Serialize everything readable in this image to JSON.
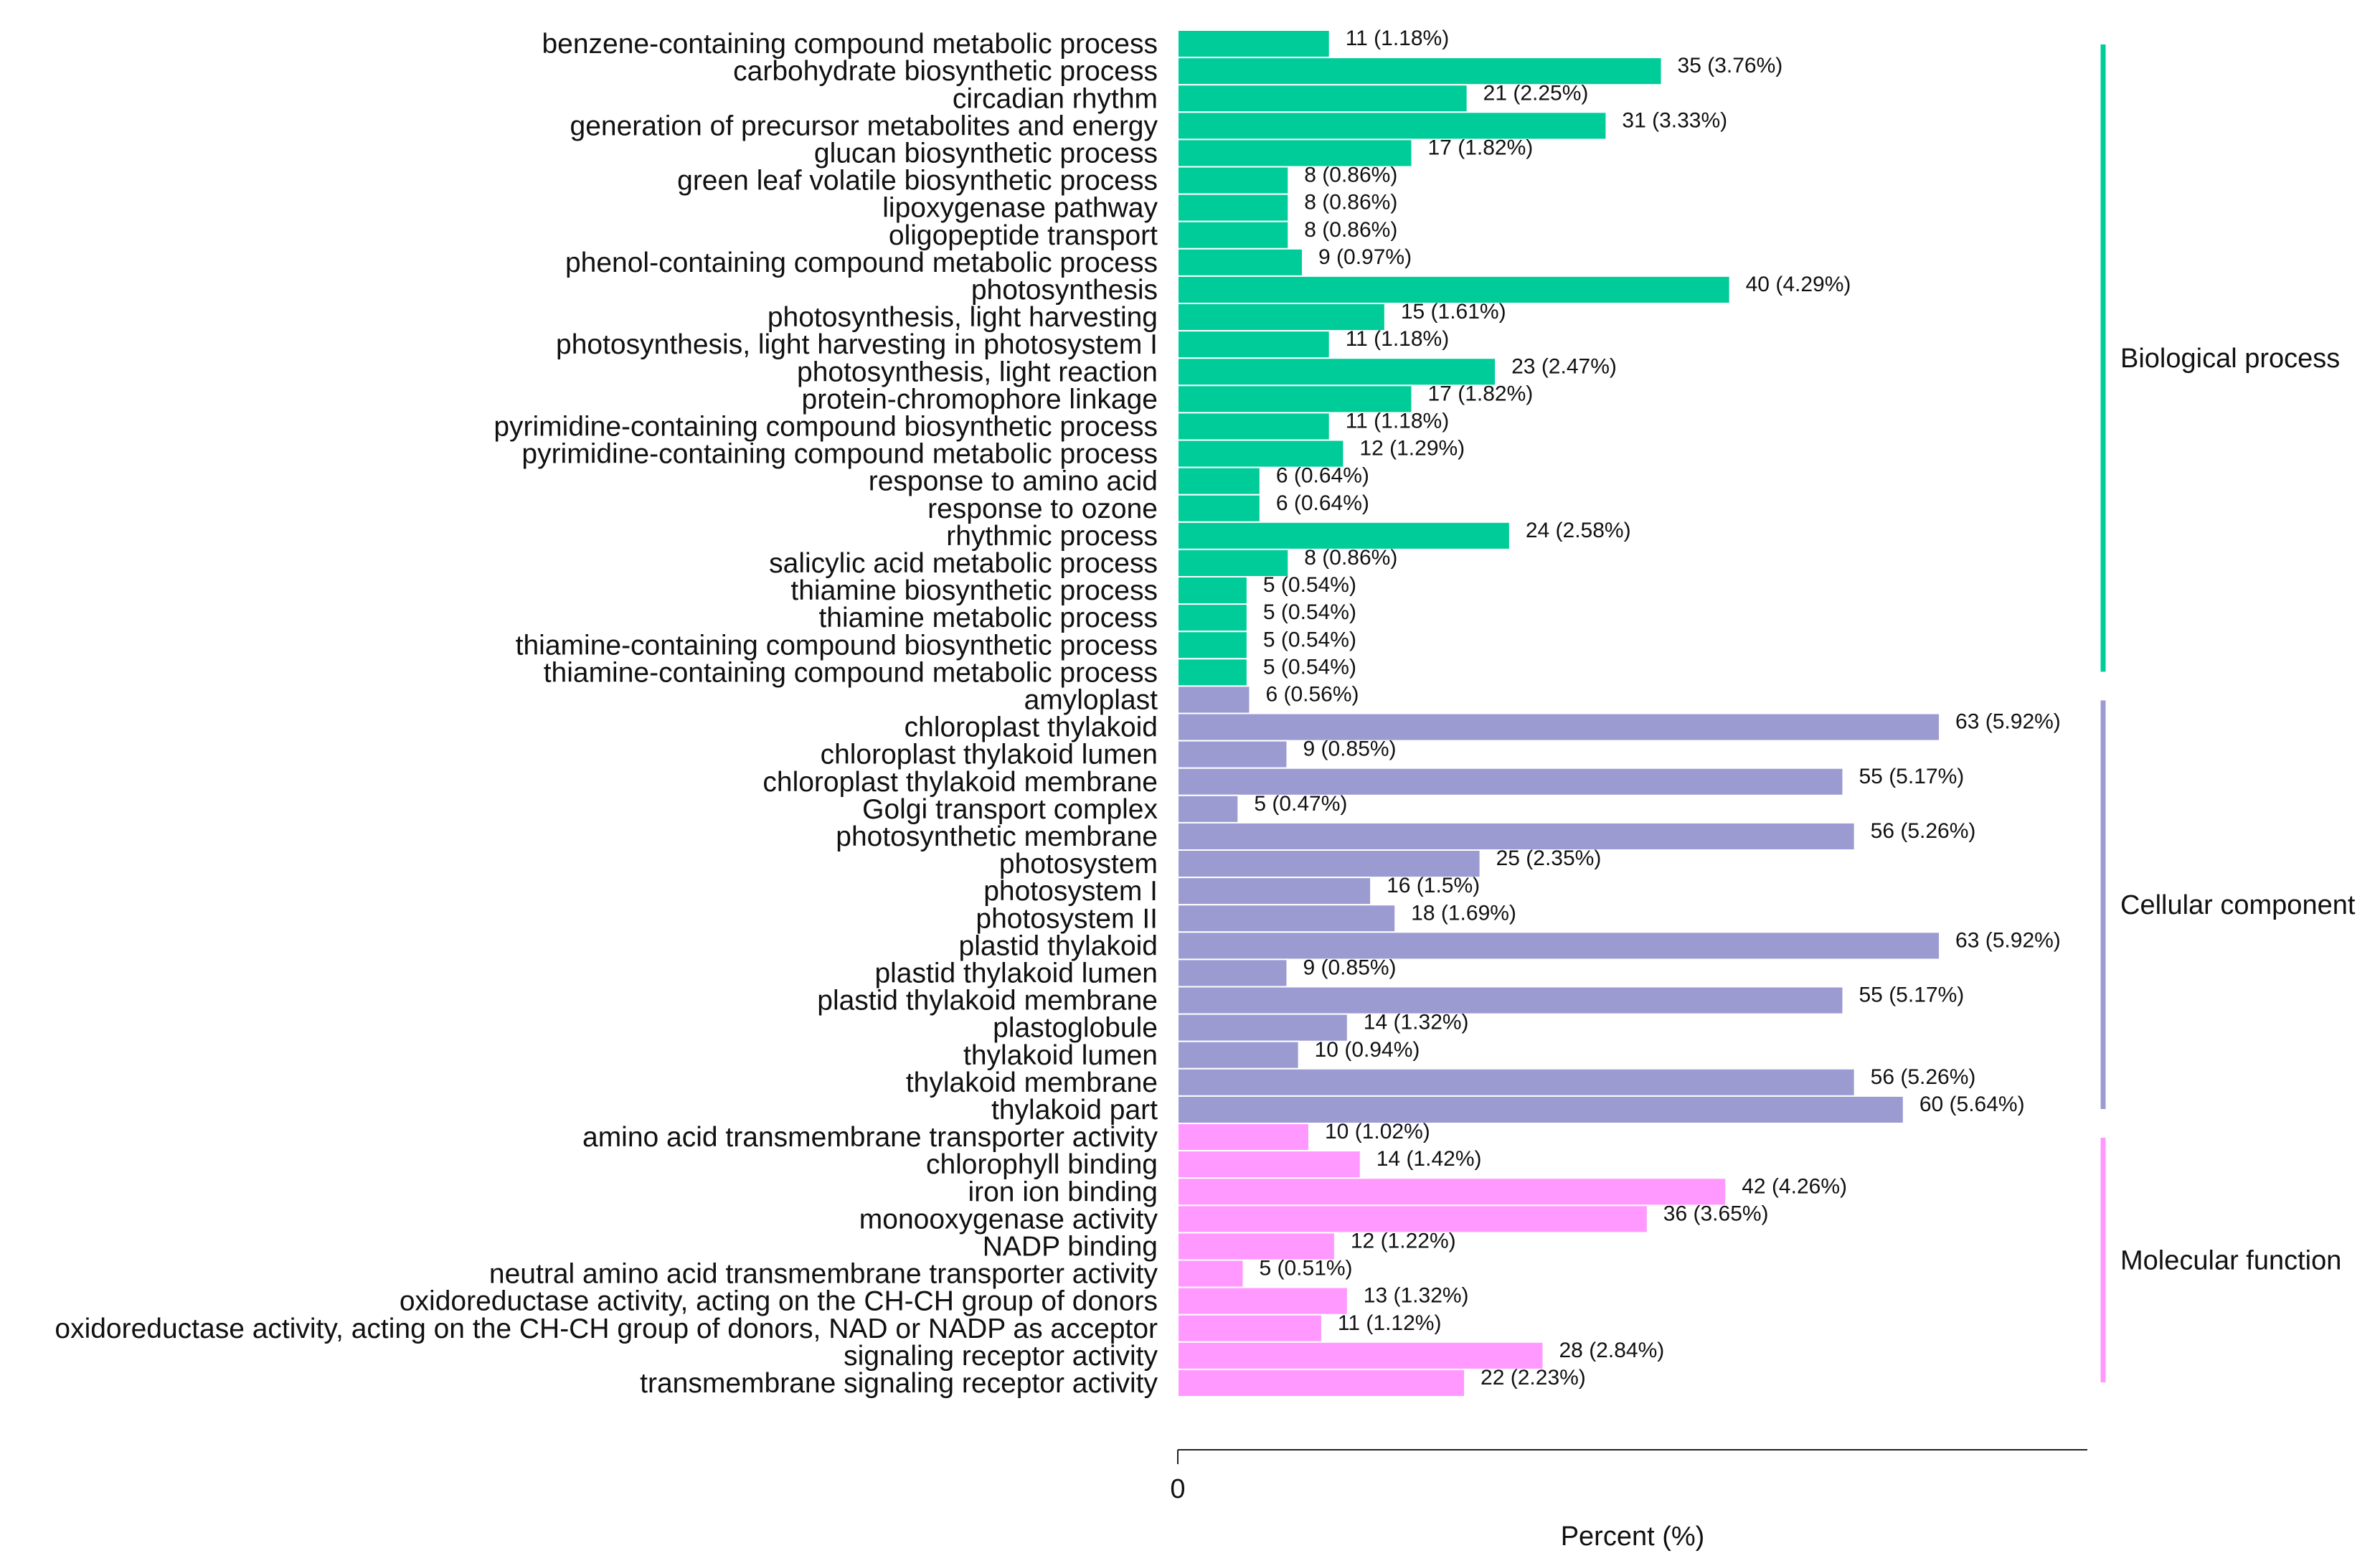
{
  "chart_data": {
    "type": "bar",
    "orientation": "horizontal",
    "xlabel": "Percent (%)",
    "x_tick_labels": [
      "0"
    ],
    "groups": [
      {
        "name": "Biological process",
        "color": "#00CC99",
        "items": [
          {
            "label": "benzene-containing compound metabolic process",
            "count": 11,
            "percent": 1.18,
            "text": "11 (1.18%)"
          },
          {
            "label": "carbohydrate biosynthetic process",
            "count": 35,
            "percent": 3.76,
            "text": "35 (3.76%)"
          },
          {
            "label": "circadian rhythm",
            "count": 21,
            "percent": 2.25,
            "text": "21 (2.25%)"
          },
          {
            "label": "generation of precursor metabolites and energy",
            "count": 31,
            "percent": 3.33,
            "text": "31 (3.33%)"
          },
          {
            "label": "glucan biosynthetic process",
            "count": 17,
            "percent": 1.82,
            "text": "17 (1.82%)"
          },
          {
            "label": "green leaf volatile biosynthetic process",
            "count": 8,
            "percent": 0.86,
            "text": "8 (0.86%)"
          },
          {
            "label": "lipoxygenase pathway",
            "count": 8,
            "percent": 0.86,
            "text": "8 (0.86%)"
          },
          {
            "label": "oligopeptide transport",
            "count": 8,
            "percent": 0.86,
            "text": "8 (0.86%)"
          },
          {
            "label": "phenol-containing compound metabolic process",
            "count": 9,
            "percent": 0.97,
            "text": "9 (0.97%)"
          },
          {
            "label": "photosynthesis",
            "count": 40,
            "percent": 4.29,
            "text": "40 (4.29%)"
          },
          {
            "label": "photosynthesis, light harvesting",
            "count": 15,
            "percent": 1.61,
            "text": "15 (1.61%)"
          },
          {
            "label": "photosynthesis, light harvesting in photosystem I",
            "count": 11,
            "percent": 1.18,
            "text": "11 (1.18%)"
          },
          {
            "label": "photosynthesis, light reaction",
            "count": 23,
            "percent": 2.47,
            "text": "23 (2.47%)"
          },
          {
            "label": "protein-chromophore linkage",
            "count": 17,
            "percent": 1.82,
            "text": "17 (1.82%)"
          },
          {
            "label": "pyrimidine-containing compound biosynthetic process",
            "count": 11,
            "percent": 1.18,
            "text": "11 (1.18%)"
          },
          {
            "label": "pyrimidine-containing compound metabolic process",
            "count": 12,
            "percent": 1.29,
            "text": "12 (1.29%)"
          },
          {
            "label": "response to amino acid",
            "count": 6,
            "percent": 0.64,
            "text": "6 (0.64%)"
          },
          {
            "label": "response to ozone",
            "count": 6,
            "percent": 0.64,
            "text": "6 (0.64%)"
          },
          {
            "label": "rhythmic process",
            "count": 24,
            "percent": 2.58,
            "text": "24 (2.58%)"
          },
          {
            "label": "salicylic acid metabolic process",
            "count": 8,
            "percent": 0.86,
            "text": "8 (0.86%)"
          },
          {
            "label": "thiamine biosynthetic process",
            "count": 5,
            "percent": 0.54,
            "text": "5 (0.54%)"
          },
          {
            "label": "thiamine metabolic process",
            "count": 5,
            "percent": 0.54,
            "text": "5 (0.54%)"
          },
          {
            "label": "thiamine-containing compound biosynthetic process",
            "count": 5,
            "percent": 0.54,
            "text": "5 (0.54%)"
          },
          {
            "label": "thiamine-containing compound metabolic process",
            "count": 5,
            "percent": 0.54,
            "text": "5 (0.54%)"
          }
        ]
      },
      {
        "name": "Cellular component",
        "color": "#9B9BD2",
        "items": [
          {
            "label": "amyloplast",
            "count": 6,
            "percent": 0.56,
            "text": "6 (0.56%)"
          },
          {
            "label": "chloroplast thylakoid",
            "count": 63,
            "percent": 5.92,
            "text": "63 (5.92%)"
          },
          {
            "label": "chloroplast thylakoid lumen",
            "count": 9,
            "percent": 0.85,
            "text": "9 (0.85%)"
          },
          {
            "label": "chloroplast thylakoid membrane",
            "count": 55,
            "percent": 5.17,
            "text": "55 (5.17%)"
          },
          {
            "label": "Golgi transport complex",
            "count": 5,
            "percent": 0.47,
            "text": "5 (0.47%)"
          },
          {
            "label": "photosynthetic membrane",
            "count": 56,
            "percent": 5.26,
            "text": "56 (5.26%)"
          },
          {
            "label": "photosystem",
            "count": 25,
            "percent": 2.35,
            "text": "25 (2.35%)"
          },
          {
            "label": "photosystem I",
            "count": 16,
            "percent": 1.5,
            "text": "16 (1.5%)"
          },
          {
            "label": "photosystem II",
            "count": 18,
            "percent": 1.69,
            "text": "18 (1.69%)"
          },
          {
            "label": "plastid thylakoid",
            "count": 63,
            "percent": 5.92,
            "text": "63 (5.92%)"
          },
          {
            "label": "plastid thylakoid lumen",
            "count": 9,
            "percent": 0.85,
            "text": "9 (0.85%)"
          },
          {
            "label": "plastid thylakoid membrane",
            "count": 55,
            "percent": 5.17,
            "text": "55 (5.17%)"
          },
          {
            "label": "plastoglobule",
            "count": 14,
            "percent": 1.32,
            "text": "14 (1.32%)"
          },
          {
            "label": "thylakoid lumen",
            "count": 10,
            "percent": 0.94,
            "text": "10 (0.94%)"
          },
          {
            "label": "thylakoid membrane",
            "count": 56,
            "percent": 5.26,
            "text": "56 (5.26%)"
          },
          {
            "label": "thylakoid part",
            "count": 60,
            "percent": 5.64,
            "text": "60 (5.64%)"
          }
        ]
      },
      {
        "name": "Molecular function",
        "color": "#FF99FF",
        "items": [
          {
            "label": "amino acid transmembrane transporter activity",
            "count": 10,
            "percent": 1.02,
            "text": "10 (1.02%)"
          },
          {
            "label": "chlorophyll binding",
            "count": 14,
            "percent": 1.42,
            "text": "14 (1.42%)"
          },
          {
            "label": "iron ion binding",
            "count": 42,
            "percent": 4.26,
            "text": "42 (4.26%)"
          },
          {
            "label": "monooxygenase activity",
            "count": 36,
            "percent": 3.65,
            "text": "36 (3.65%)"
          },
          {
            "label": "NADP binding",
            "count": 12,
            "percent": 1.22,
            "text": "12 (1.22%)"
          },
          {
            "label": "neutral amino acid transmembrane transporter activity",
            "count": 5,
            "percent": 0.51,
            "text": "5 (0.51%)"
          },
          {
            "label": "oxidoreductase activity, acting on the CH-CH group of donors",
            "count": 13,
            "percent": 1.32,
            "text": "13 (1.32%)"
          },
          {
            "label": "oxidoreductase activity, acting on the CH-CH group of donors, NAD or NADP as acceptor",
            "count": 11,
            "percent": 1.12,
            "text": "11 (1.12%)"
          },
          {
            "label": "signaling receptor activity",
            "count": 28,
            "percent": 2.84,
            "text": "28 (2.84%)"
          },
          {
            "label": "transmembrane signaling receptor activity",
            "count": 22,
            "percent": 2.23,
            "text": "22 (2.23%)"
          }
        ]
      }
    ]
  }
}
